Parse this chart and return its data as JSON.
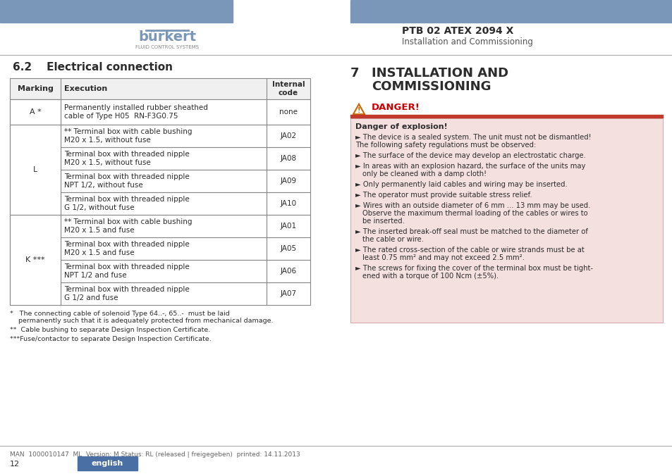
{
  "page_bg": "#ffffff",
  "header_bar_color": "#7a96b8",
  "logo_text": "bürkert",
  "logo_sub": "FLUID CONTROL SYSTEMS",
  "ptb_title": "PTB 02 ATEX 2094 X",
  "ptb_subtitle": "Installation and Commissioning",
  "section_title": "6.2    Electrical connection",
  "section7_num": "7",
  "danger_label": "DANGER!",
  "danger_bar_color": "#c0392b",
  "danger_bg_color": "#f5e0e0",
  "danger_of_explosion": "Danger of explosion!",
  "danger_bullets": [
    "The device is a sealed system. The unit must not be dismantled!\nThe following safety regulations must be observed:",
    "The surface of the device may develop an electrostatic charge.",
    "In areas with an explosion hazard, the surface of the units may\nonly be cleaned with a damp cloth!",
    "Only permanently laid cables and wiring may be inserted.",
    "The operator must provide suitable stress relief.",
    "Wires with an outside diameter of 6 mm ... 13 mm may be used.\nObserve the maximum thermal loading of the cables or wires to\nbe inserted.",
    "The inserted break-off seal must be matched to the diameter of\nthe cable or wire.",
    "The rated cross-section of the cable or wire strands must be at\nleast 0.75 mm² and may not exceed 2.5 mm².",
    "The screws for fixing the cover of the terminal box must be tight-\nened with a torque of 100 Ncm (±5%)."
  ],
  "table_header": [
    "Marking",
    "Execution",
    "Internal\ncode"
  ],
  "table_rows": [
    [
      "A *",
      "Permanently installed rubber sheathed\ncable of Type H05  RN-F3G0.75",
      "none"
    ],
    [
      "",
      "** Terminal box with cable bushing\nM20 x 1.5, without fuse",
      "JA02"
    ],
    [
      "",
      "Terminal box with threaded nipple\nM20 x 1.5, without fuse",
      "JA08"
    ],
    [
      "L",
      "Terminal box with threaded nipple\nNPT 1/2, without fuse",
      "JA09"
    ],
    [
      "",
      "Terminal box with threaded nipple\nG 1/2, without fuse",
      "JA10"
    ],
    [
      "",
      "** Terminal box with cable bushing\nM20 x 1.5 and fuse",
      "JA01"
    ],
    [
      "",
      "Terminal box with threaded nipple\nM20 x 1.5 and fuse",
      "JA05"
    ],
    [
      "K ***",
      "Terminal box with threaded nipple\nNPT 1/2 and fuse",
      "JA06"
    ],
    [
      "",
      "Terminal box with threaded nipple\nG 1/2 and fuse",
      "JA07"
    ]
  ],
  "footnotes": [
    "*   The connecting cable of solenoid Type 64..-, 65..-  must be laid\n    permanently such that it is adequately protected from mechanical damage.",
    "**  Cable bushing to separate Design Inspection Certificate.",
    "***Fuse/contactor to separate Design Inspection Certificate."
  ],
  "footer_text": "MAN  1000010147  ML  Version: M Status: RL (released | freigegeben)  printed: 14.11.2013",
  "footer_page": "12",
  "footer_english_bg": "#4a6fa5",
  "footer_english_text": "english",
  "divider_color": "#aaaaaa",
  "text_color": "#2c2c2c",
  "table_border_color": "#888888",
  "table_header_bg": "#f0f0f0"
}
